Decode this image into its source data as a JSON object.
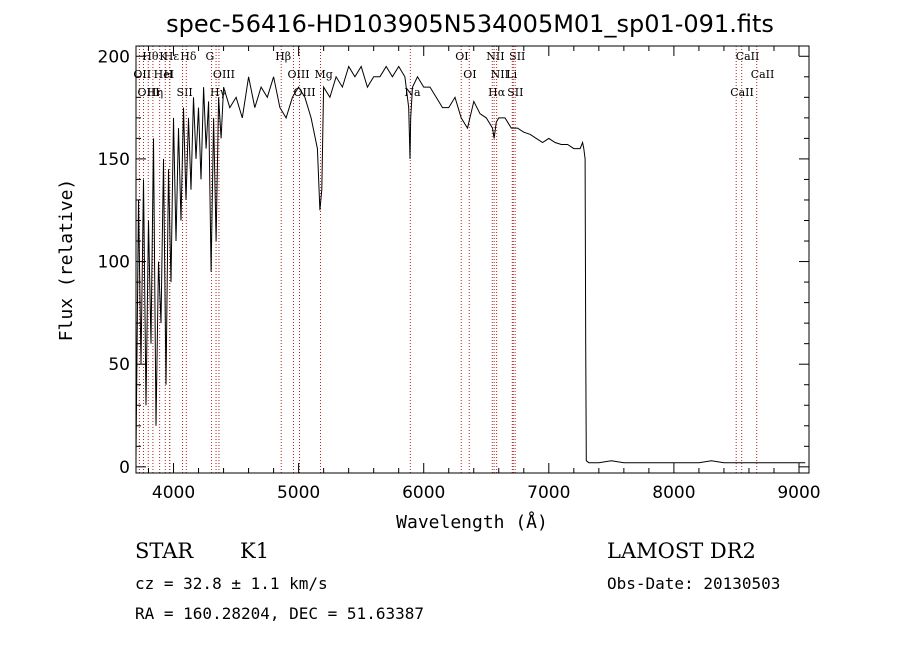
{
  "chart_data": {
    "type": "line",
    "title": "spec-56416-HD103905N534005M01_sp01-091.fits",
    "xlabel": "Wavelength (Å)",
    "ylabel": "Flux (relative)",
    "xlim": [
      3700,
      9080
    ],
    "ylim": [
      -3,
      205
    ],
    "xticks": [
      4000,
      5000,
      6000,
      7000,
      8000,
      9000
    ],
    "yticks": [
      0,
      50,
      100,
      150,
      200
    ],
    "grid": false,
    "series": [
      {
        "color": "#000000",
        "x": [
          3700,
          3720,
          3740,
          3760,
          3780,
          3800,
          3820,
          3840,
          3860,
          3880,
          3900,
          3920,
          3940,
          3960,
          3980,
          4000,
          4020,
          4040,
          4060,
          4080,
          4100,
          4120,
          4140,
          4160,
          4180,
          4200,
          4220,
          4240,
          4260,
          4280,
          4300,
          4320,
          4340,
          4360,
          4380,
          4400,
          4450,
          4500,
          4550,
          4600,
          4650,
          4700,
          4750,
          4800,
          4850,
          4900,
          4950,
          5000,
          5050,
          5100,
          5150,
          5170,
          5185,
          5200,
          5250,
          5300,
          5350,
          5400,
          5450,
          5500,
          5550,
          5600,
          5650,
          5700,
          5750,
          5800,
          5850,
          5880,
          5890,
          5896,
          5910,
          5950,
          6000,
          6050,
          6100,
          6150,
          6200,
          6250,
          6300,
          6350,
          6400,
          6450,
          6500,
          6550,
          6563,
          6580,
          6600,
          6650,
          6700,
          6750,
          6800,
          6850,
          6900,
          6950,
          7000,
          7050,
          7100,
          7150,
          7200,
          7250,
          7270,
          7280,
          7290,
          7295,
          7300,
          7320,
          7400,
          7500,
          7600,
          7700,
          7800,
          7900,
          8000,
          8100,
          8200,
          8300,
          8400,
          8500,
          8600,
          8700,
          8800,
          8900,
          9000,
          9050
        ],
        "y": [
          5,
          130,
          50,
          140,
          30,
          120,
          60,
          160,
          20,
          100,
          70,
          150,
          40,
          145,
          90,
          170,
          110,
          165,
          120,
          175,
          130,
          170,
          135,
          180,
          150,
          175,
          140,
          185,
          155,
          178,
          95,
          170,
          110,
          180,
          160,
          185,
          175,
          180,
          170,
          190,
          175,
          185,
          180,
          190,
          175,
          170,
          180,
          185,
          180,
          170,
          155,
          125,
          135,
          185,
          180,
          190,
          185,
          195,
          190,
          195,
          185,
          190,
          190,
          195,
          190,
          195,
          190,
          175,
          150,
          170,
          185,
          190,
          185,
          185,
          180,
          175,
          175,
          180,
          170,
          165,
          178,
          172,
          170,
          165,
          160,
          168,
          170,
          170,
          165,
          165,
          163,
          162,
          160,
          158,
          160,
          158,
          157,
          157,
          155,
          155,
          158,
          155,
          150,
          60,
          3,
          2,
          2,
          3,
          2,
          2,
          2,
          2,
          2,
          2,
          2,
          3,
          2,
          2,
          2,
          2,
          2,
          2,
          2,
          2
        ]
      }
    ],
    "lines": [
      {
        "name": "Hθ",
        "x": 3798
      },
      {
        "name": "OII",
        "x": 3727
      },
      {
        "name": "OIII",
        "x": 3760
      },
      {
        "name": "Hε",
        "x": 3970
      },
      {
        "name": "HeI",
        "x": 3889
      },
      {
        "name": "Hη",
        "x": 3835
      },
      {
        "name": "K",
        "x": 3934
      },
      {
        "name": "H",
        "x": 3969
      },
      {
        "name": "SII",
        "x": 4072
      },
      {
        "name": "Hδ",
        "x": 4102
      },
      {
        "name": "OIII",
        "x": 4363
      },
      {
        "name": "Hγ",
        "x": 4340
      },
      {
        "name": "G",
        "x": 4304
      },
      {
        "name": "OIII",
        "x": 4959
      },
      {
        "name": "OIII",
        "x": 5007
      },
      {
        "name": "Hβ",
        "x": 4861
      },
      {
        "name": "Mg",
        "x": 5175
      },
      {
        "name": "Na",
        "x": 5893
      },
      {
        "name": "OI",
        "x": 6300
      },
      {
        "name": "OI",
        "x": 6364
      },
      {
        "name": "Hα",
        "x": 6563
      },
      {
        "name": "NII",
        "x": 6548
      },
      {
        "name": "NII",
        "x": 6583
      },
      {
        "name": "SII",
        "x": 6716
      },
      {
        "name": "SII",
        "x": 6731
      },
      {
        "name": "Li",
        "x": 6708
      },
      {
        "name": "CaII",
        "x": 8498
      },
      {
        "name": "CaII",
        "x": 8542
      },
      {
        "name": "CaII",
        "x": 8662
      }
    ]
  },
  "info": {
    "class_label": "STAR",
    "subclass_label": "K1",
    "cz": "cz = 32.8 ± 1.1 km/s",
    "radec": "RA = 160.28204, DEC =  51.63387",
    "survey": "LAMOST DR2",
    "obs_date": "Obs-Date: 20130503"
  }
}
